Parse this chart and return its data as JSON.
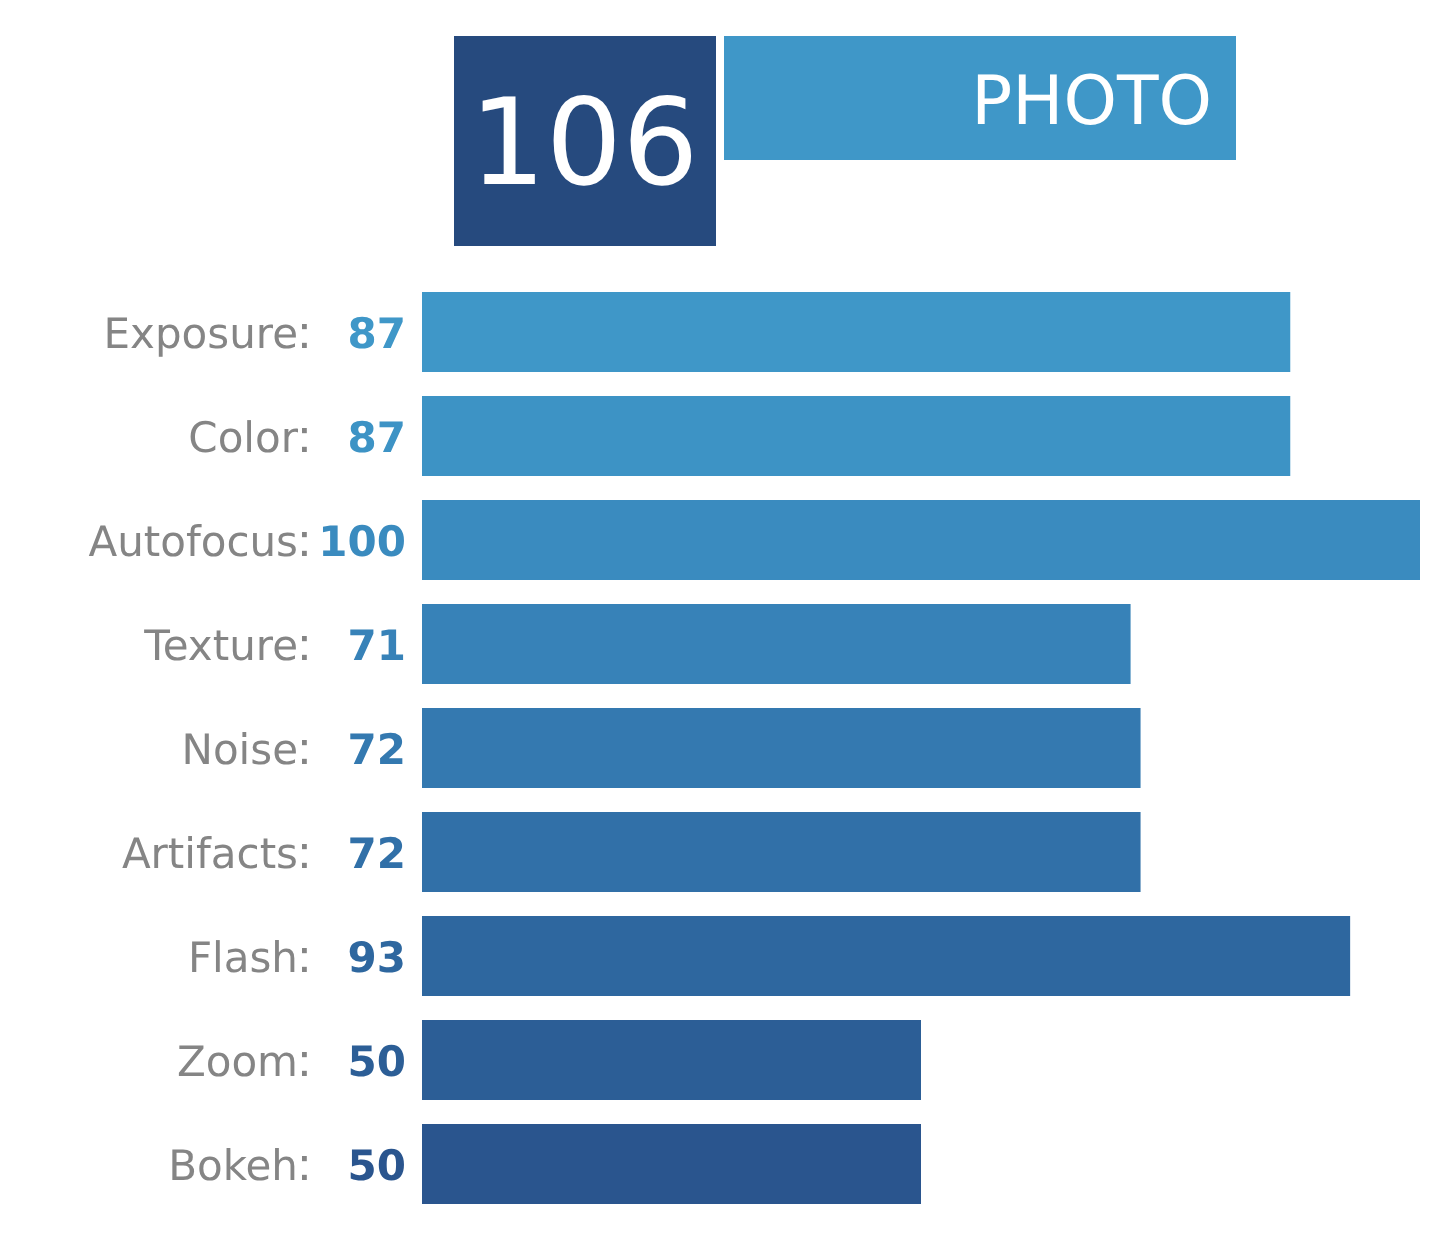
{
  "chart_data": {
    "type": "bar",
    "orientation": "horizontal",
    "title": "PHOTO",
    "annotations": [
      "106"
    ],
    "data_labels": true,
    "categories": [
      "Exposure",
      "Color",
      "Autofocus",
      "Texture",
      "Noise",
      "Artifacts",
      "Flash",
      "Zoom",
      "Bokeh"
    ],
    "values": [
      87,
      87,
      100,
      71,
      72,
      72,
      93,
      50,
      50
    ],
    "colors": [
      "#3f97c8",
      "#3d93c5",
      "#3a8bbf",
      "#3782b8",
      "#3479b0",
      "#3170a8",
      "#2e679f",
      "#2c5e96",
      "#2a558e"
    ]
  }
}
